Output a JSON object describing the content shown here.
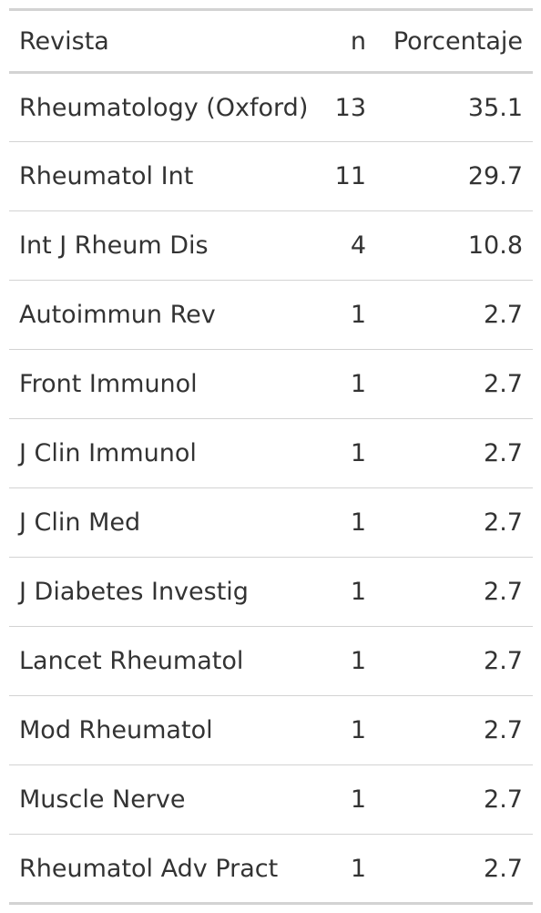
{
  "table": {
    "headers": {
      "journal": "Revista",
      "n": "n",
      "percent": "Porcentaje"
    },
    "rows": [
      {
        "journal": "Rheumatology (Oxford)",
        "n": "13",
        "percent": "35.1"
      },
      {
        "journal": "Rheumatol Int",
        "n": "11",
        "percent": "29.7"
      },
      {
        "journal": "Int J Rheum Dis",
        "n": "4",
        "percent": "10.8"
      },
      {
        "journal": "Autoimmun Rev",
        "n": "1",
        "percent": "2.7"
      },
      {
        "journal": "Front Immunol",
        "n": "1",
        "percent": "2.7"
      },
      {
        "journal": "J Clin Immunol",
        "n": "1",
        "percent": "2.7"
      },
      {
        "journal": "J Clin Med",
        "n": "1",
        "percent": "2.7"
      },
      {
        "journal": "J Diabetes Investig",
        "n": "1",
        "percent": "2.7"
      },
      {
        "journal": "Lancet Rheumatol",
        "n": "1",
        "percent": "2.7"
      },
      {
        "journal": "Mod Rheumatol",
        "n": "1",
        "percent": "2.7"
      },
      {
        "journal": "Muscle Nerve",
        "n": "1",
        "percent": "2.7"
      },
      {
        "journal": "Rheumatol Adv Pract",
        "n": "1",
        "percent": "2.7"
      }
    ]
  }
}
